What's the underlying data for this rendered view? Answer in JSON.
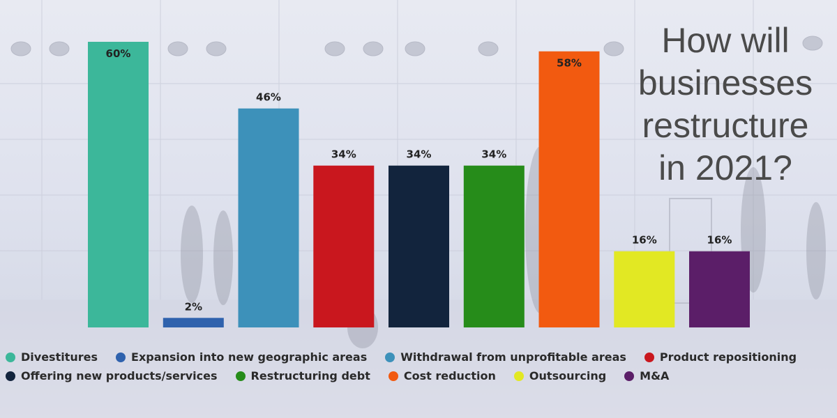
{
  "chart_data": {
    "type": "bar",
    "title": "How will businesses restructure in 2021?",
    "title_lines": [
      "How will",
      "businesses",
      "restructure",
      "in 2021?"
    ],
    "ylim": [
      0,
      60
    ],
    "categories": [
      "Divestitures",
      "Expansion into new geographic areas",
      "Withdrawal from unprofitable areas",
      "Product repositioning",
      "Offering new products/services",
      "Restructuring debt",
      "Cost reduction",
      "Outsourcing",
      "M&A"
    ],
    "values": [
      60,
      2,
      46,
      34,
      34,
      34,
      58,
      16,
      16
    ],
    "value_labels": [
      "60%",
      "2%",
      "46%",
      "34%",
      "34%",
      "34%",
      "58%",
      "16%",
      "16%"
    ],
    "colors": [
      "#3cb79a",
      "#2f62ad",
      "#3d91ba",
      "#c9171e",
      "#12243d",
      "#268c1a",
      "#f25a10",
      "#e2e823",
      "#5b1e68"
    ],
    "legend_rows": [
      [
        0,
        1,
        2,
        3
      ],
      [
        4,
        5,
        6,
        7,
        8
      ]
    ],
    "legend_placement": "bottom",
    "grid": false
  }
}
